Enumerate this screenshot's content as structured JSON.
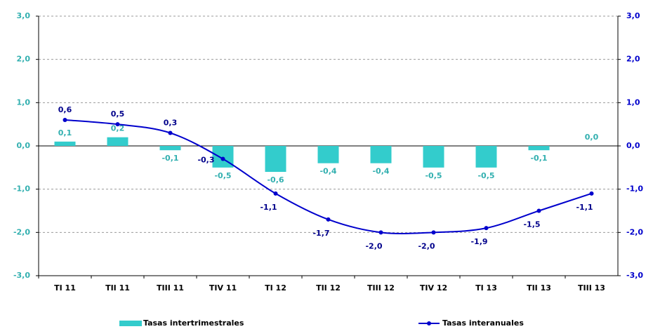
{
  "chart_data": {
    "type": "bar-line",
    "categories": [
      "TI 11",
      "TII 11",
      "TIII 11",
      "TIV 11",
      "TI 12",
      "TII 12",
      "TIII 12",
      "TIV 12",
      "TI 13",
      "TII 13",
      "TIII 13"
    ],
    "series": [
      {
        "name": "Tasas intertrimestrales",
        "type": "bar",
        "color": "#33cccc",
        "axis": "y",
        "values": [
          0.1,
          0.2,
          -0.1,
          -0.5,
          -0.6,
          -0.4,
          -0.4,
          -0.5,
          -0.5,
          -0.1,
          0.0
        ],
        "value_labels": [
          "0,1",
          "0,2",
          "-0,1",
          "-0,5",
          "-0,6",
          "-0,4",
          "-0,4",
          "-0,5",
          "-0,5",
          "-0,1",
          "0,0"
        ]
      },
      {
        "name": "Tasas interanuales",
        "type": "line",
        "color": "#0000cc",
        "axis": "y2",
        "values": [
          0.6,
          0.5,
          0.3,
          -0.3,
          -1.1,
          -1.7,
          -2.0,
          -2.0,
          -1.9,
          -1.5,
          -1.1
        ],
        "value_labels": [
          "0,6",
          "0,5",
          "0,3",
          "-0,3",
          "-1,1",
          "-1,7",
          "-2,0",
          "-2,0",
          "-1,9",
          "-1,5",
          "-1,1"
        ]
      }
    ],
    "ylim": [
      -3,
      3
    ],
    "yticks": [
      {
        "value": -3,
        "label": "-3,0"
      },
      {
        "value": -2,
        "label": "-2,0"
      },
      {
        "value": -1,
        "label": "-1,0"
      },
      {
        "value": 0,
        "label": "0,0"
      },
      {
        "value": 1,
        "label": "1,0"
      },
      {
        "value": 2,
        "label": "2,0"
      },
      {
        "value": 3,
        "label": "3,0"
      }
    ],
    "y2lim": [
      -3,
      3
    ],
    "y2ticks": [
      {
        "value": -3,
        "label": "-3,0"
      },
      {
        "value": -2,
        "label": "-2,0"
      },
      {
        "value": -1,
        "label": "-1,0"
      },
      {
        "value": 0,
        "label": "0,0"
      },
      {
        "value": 1,
        "label": "1,0"
      },
      {
        "value": 2,
        "label": "2,0"
      },
      {
        "value": 3,
        "label": "3,0"
      }
    ],
    "grid": true,
    "legend": "bottom"
  }
}
